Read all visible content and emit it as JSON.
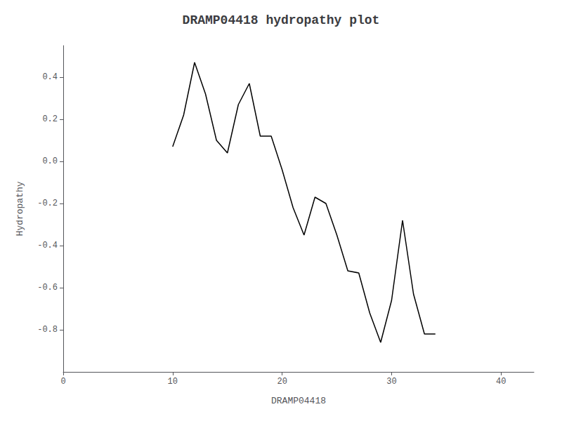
{
  "chart_data": {
    "type": "line",
    "title": "DRAMP04418 hydropathy plot",
    "xlabel": "DRAMP04418",
    "ylabel": "Hydropathy",
    "x": [
      10,
      11,
      12,
      13,
      14,
      15,
      16,
      17,
      18,
      19,
      20,
      21,
      22,
      23,
      24,
      25,
      26,
      27,
      28,
      29,
      30,
      31,
      32,
      33,
      34
    ],
    "values": [
      0.07,
      0.22,
      0.47,
      0.32,
      0.1,
      0.04,
      0.27,
      0.37,
      0.12,
      0.12,
      -0.04,
      -0.22,
      -0.35,
      -0.17,
      -0.2,
      -0.35,
      -0.52,
      -0.53,
      -0.72,
      -0.86,
      -0.66,
      -0.28,
      -0.63,
      -0.82,
      -0.82
    ],
    "color": "#000000",
    "xlim": [
      0,
      43
    ],
    "xticks": [
      0,
      10,
      20,
      30,
      40
    ],
    "ylim": [
      -1.0,
      0.55
    ],
    "yticks": [
      -0.8,
      -0.6,
      -0.4,
      -0.2,
      {
        "value": 0.0,
        "label": "0.0"
      },
      0.2,
      0.4
    ],
    "grid": false
  }
}
